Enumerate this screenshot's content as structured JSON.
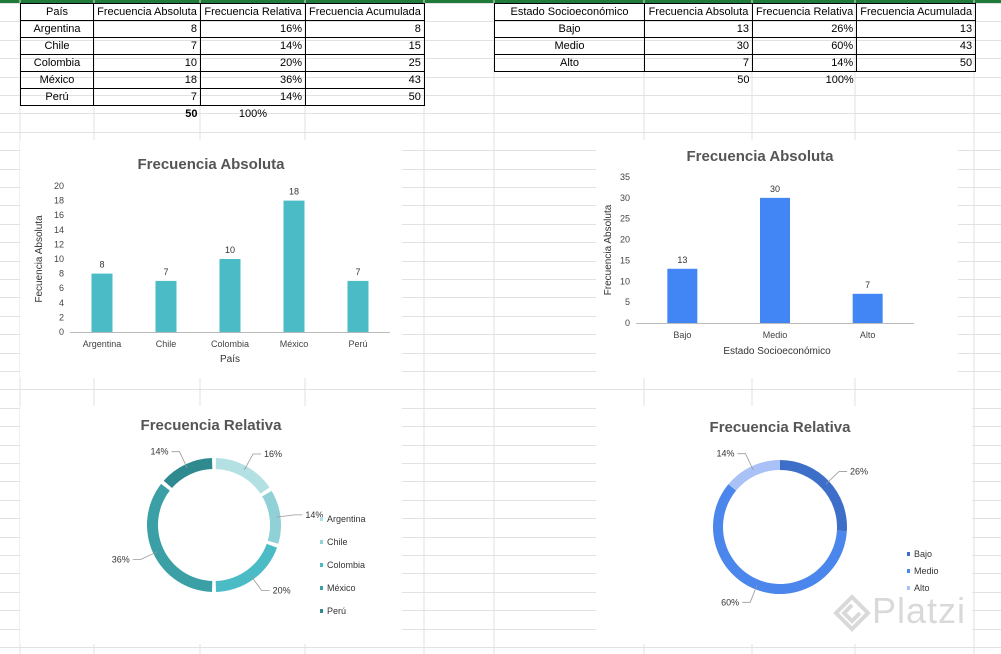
{
  "country_table": {
    "headers": [
      "País",
      "Frecuencia Absoluta",
      "Frecuencia Relativa",
      "Frecuencia Acumulada"
    ],
    "rows": [
      [
        "Argentina",
        "8",
        "16%",
        "8"
      ],
      [
        "Chile",
        "7",
        "14%",
        "15"
      ],
      [
        "Colombia",
        "10",
        "20%",
        "25"
      ],
      [
        "México",
        "18",
        "36%",
        "43"
      ],
      [
        "Perú",
        "7",
        "14%",
        "50"
      ]
    ],
    "totals": [
      "",
      "50",
      "100%",
      ""
    ]
  },
  "ses_table": {
    "headers": [
      "Estado Socioeconómico",
      "Frecuencia Absoluta",
      "Frecuencia Relativa",
      "Frecuencia Acumulada"
    ],
    "rows": [
      [
        "Bajo",
        "13",
        "26%",
        "13"
      ],
      [
        "Medio",
        "30",
        "60%",
        "43"
      ],
      [
        "Alto",
        "7",
        "14%",
        "50"
      ]
    ],
    "totals": [
      "",
      "50",
      "100%",
      ""
    ]
  },
  "chart_data": [
    {
      "id": "bar_country",
      "type": "bar",
      "title": "Frecuencia Absoluta",
      "xlabel": "País",
      "ylabel": "Fecuencia Absoluta",
      "categories": [
        "Argentina",
        "Chile",
        "Colombia",
        "México",
        "Perú"
      ],
      "values": [
        8,
        7,
        10,
        18,
        7
      ],
      "ylim": [
        0,
        20
      ],
      "yticks": [
        0,
        2,
        4,
        6,
        8,
        10,
        12,
        14,
        16,
        18,
        20
      ],
      "color": "#4bbcc6"
    },
    {
      "id": "bar_ses",
      "type": "bar",
      "title": "Frecuencia Absoluta",
      "xlabel": "Estado  Socioeconómico",
      "ylabel": "Frecuencia Absoluta",
      "categories": [
        "Bajo",
        "Medio",
        "Alto"
      ],
      "values": [
        13,
        30,
        7
      ],
      "ylim": [
        0,
        35
      ],
      "yticks": [
        0,
        5,
        10,
        15,
        20,
        25,
        30,
        35
      ],
      "color": "#4285f4"
    },
    {
      "id": "donut_country",
      "type": "pie",
      "title": "Frecuencia Relativa",
      "categories": [
        "Argentina",
        "Chile",
        "Colombia",
        "México",
        "Perú"
      ],
      "values": [
        16,
        14,
        20,
        36,
        14
      ],
      "labels": [
        "16%",
        "14%",
        "20%",
        "36%",
        "14%"
      ],
      "colors": [
        "#b3e0e3",
        "#8fd1d7",
        "#4bbcc6",
        "#3ba0a6",
        "#2e8a8f"
      ],
      "legend": "right"
    },
    {
      "id": "donut_ses",
      "type": "pie",
      "title": "Frecuencia Relativa",
      "categories": [
        "Bajo",
        "Medio",
        "Alto"
      ],
      "values": [
        26,
        60,
        14
      ],
      "labels": [
        "26%",
        "60%",
        "14%"
      ],
      "colors": [
        "#3d6fc9",
        "#4a86ec",
        "#a9c1f6"
      ],
      "legend": "right"
    }
  ],
  "watermark": "Platzi"
}
